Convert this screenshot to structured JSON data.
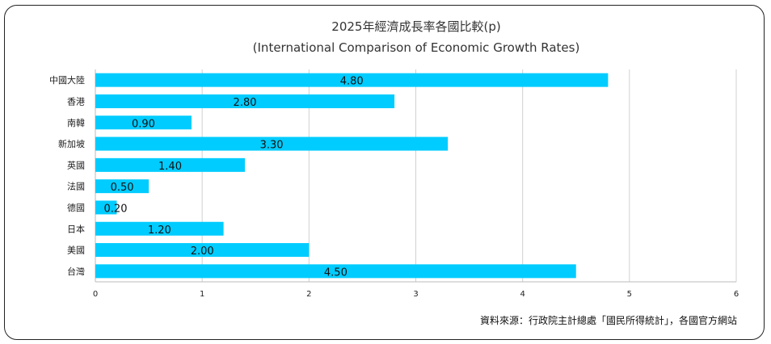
{
  "chart_data": {
    "type": "bar",
    "orientation": "horizontal",
    "title": "2025年經濟成長率各國比較(p)",
    "subtitle": "(International Comparison of Economic Growth Rates)",
    "categories": [
      "中國大陸",
      "香港",
      "南韓",
      "新加坡",
      "英國",
      "法國",
      "德國",
      "日本",
      "美國",
      "台灣"
    ],
    "values": [
      4.8,
      2.8,
      0.9,
      3.3,
      1.4,
      0.5,
      0.2,
      1.2,
      2.0,
      4.5
    ],
    "data_labels": [
      "4.80",
      "2.80",
      "0.90",
      "3.30",
      "1.40",
      "0.50",
      "0.20",
      "1.20",
      "2.00",
      "4.50"
    ],
    "xlim": [
      0,
      6
    ],
    "xticks": [
      "0",
      "1",
      "2",
      "3",
      "4",
      "5",
      "6"
    ],
    "grid": true,
    "bar_color": "#00CCFF",
    "source": "資料來源：行政院主計總處「國民所得統計」，各國官方網站"
  }
}
